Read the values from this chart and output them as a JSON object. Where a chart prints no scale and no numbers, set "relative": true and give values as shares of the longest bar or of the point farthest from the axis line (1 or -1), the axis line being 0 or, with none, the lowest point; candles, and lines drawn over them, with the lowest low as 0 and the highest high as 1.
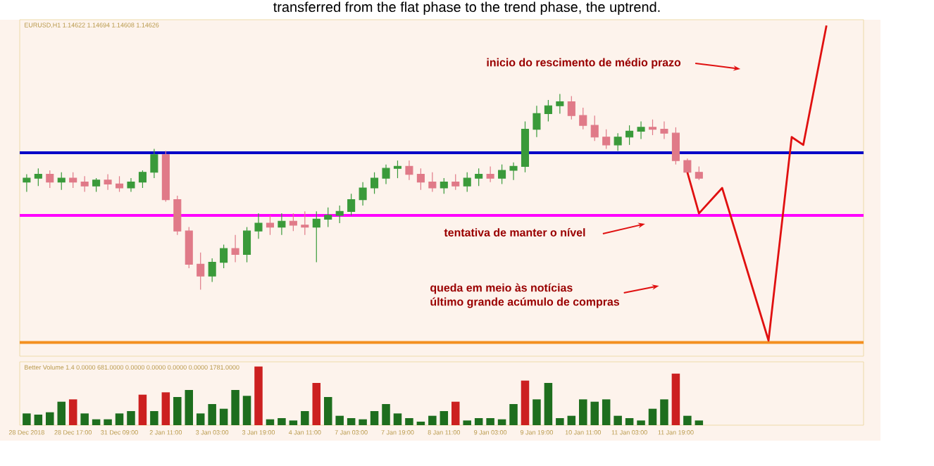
{
  "chart_data": [
    {
      "type": "candlestick",
      "title": "transferred from the flat phase to the trend phase, the uptrend.",
      "subtitle": "EURUSD,H1  1.14622 1.14694 1.14608 1.14626",
      "relative": true,
      "categories": [
        null,
        null,
        null,
        null,
        null,
        null,
        null,
        null,
        null,
        null,
        null,
        null,
        null,
        null,
        null,
        null,
        null,
        null,
        null,
        null,
        null,
        null,
        null,
        null,
        null,
        null,
        null,
        null,
        null,
        null,
        null,
        null,
        null,
        null,
        null,
        null,
        null,
        null,
        null,
        null,
        null,
        null,
        null,
        null,
        null,
        null,
        null,
        null,
        null,
        null,
        null,
        null,
        null,
        null,
        null,
        null,
        null,
        null,
        null,
        null,
        null,
        null,
        null,
        null,
        null,
        null,
        null,
        null,
        null,
        null
      ],
      "ohlc": [
        [
          0.55,
          0.59,
          0.5,
          0.57
        ],
        [
          0.57,
          0.62,
          0.53,
          0.59
        ],
        [
          0.59,
          0.61,
          0.52,
          0.55
        ],
        [
          0.55,
          0.6,
          0.51,
          0.57
        ],
        [
          0.57,
          0.6,
          0.52,
          0.55
        ],
        [
          0.55,
          0.58,
          0.5,
          0.53
        ],
        [
          0.53,
          0.57,
          0.5,
          0.56
        ],
        [
          0.56,
          0.59,
          0.51,
          0.54
        ],
        [
          0.54,
          0.58,
          0.5,
          0.52
        ],
        [
          0.52,
          0.57,
          0.5,
          0.55
        ],
        [
          0.55,
          0.61,
          0.52,
          0.6
        ],
        [
          0.6,
          0.72,
          0.57,
          0.69
        ],
        [
          0.69,
          0.71,
          0.45,
          0.46
        ],
        [
          0.46,
          0.48,
          0.28,
          0.3
        ],
        [
          0.3,
          0.32,
          0.11,
          0.13
        ],
        [
          0.13,
          0.19,
          0.0,
          0.07
        ],
        [
          0.07,
          0.16,
          0.04,
          0.14
        ],
        [
          0.14,
          0.23,
          0.11,
          0.21
        ],
        [
          0.21,
          0.28,
          0.14,
          0.18
        ],
        [
          0.18,
          0.32,
          0.14,
          0.3
        ],
        [
          0.3,
          0.39,
          0.26,
          0.34
        ],
        [
          0.34,
          0.38,
          0.28,
          0.32
        ],
        [
          0.32,
          0.39,
          0.28,
          0.35
        ],
        [
          0.35,
          0.39,
          0.3,
          0.33
        ],
        [
          0.33,
          0.4,
          0.28,
          0.32
        ],
        [
          0.32,
          0.4,
          0.14,
          0.36
        ],
        [
          0.36,
          0.42,
          0.32,
          0.38
        ],
        [
          0.38,
          0.43,
          0.34,
          0.4
        ],
        [
          0.4,
          0.49,
          0.38,
          0.46
        ],
        [
          0.46,
          0.55,
          0.43,
          0.52
        ],
        [
          0.52,
          0.6,
          0.49,
          0.57
        ],
        [
          0.57,
          0.64,
          0.54,
          0.62
        ],
        [
          0.62,
          0.66,
          0.57,
          0.63
        ],
        [
          0.63,
          0.66,
          0.56,
          0.59
        ],
        [
          0.59,
          0.62,
          0.51,
          0.55
        ],
        [
          0.55,
          0.6,
          0.5,
          0.52
        ],
        [
          0.52,
          0.57,
          0.49,
          0.55
        ],
        [
          0.55,
          0.59,
          0.51,
          0.53
        ],
        [
          0.53,
          0.6,
          0.5,
          0.57
        ],
        [
          0.57,
          0.62,
          0.53,
          0.59
        ],
        [
          0.59,
          0.63,
          0.55,
          0.57
        ],
        [
          0.57,
          0.64,
          0.54,
          0.61
        ],
        [
          0.61,
          0.65,
          0.56,
          0.63
        ],
        [
          0.63,
          0.86,
          0.6,
          0.82
        ],
        [
          0.82,
          0.94,
          0.78,
          0.9
        ],
        [
          0.9,
          0.97,
          0.86,
          0.94
        ],
        [
          0.94,
          1.0,
          0.9,
          0.96
        ],
        [
          0.96,
          0.99,
          0.87,
          0.89
        ],
        [
          0.89,
          0.93,
          0.82,
          0.84
        ],
        [
          0.84,
          0.89,
          0.76,
          0.78
        ],
        [
          0.78,
          0.82,
          0.72,
          0.74
        ],
        [
          0.74,
          0.8,
          0.71,
          0.78
        ],
        [
          0.78,
          0.84,
          0.74,
          0.81
        ],
        [
          0.81,
          0.86,
          0.77,
          0.83
        ],
        [
          0.83,
          0.87,
          0.79,
          0.82
        ],
        [
          0.82,
          0.86,
          0.77,
          0.8
        ],
        [
          0.8,
          0.83,
          0.64,
          0.66
        ],
        [
          0.66,
          0.67,
          0.59,
          0.6
        ],
        [
          0.6,
          0.63,
          0.56,
          0.57
        ],
        null,
        null,
        null,
        null,
        null,
        null,
        null,
        null,
        null,
        null,
        null
      ],
      "series": [
        {
          "type": "line",
          "color": "#e01010",
          "values": [
            null,
            null,
            null,
            null,
            null,
            null,
            null,
            null,
            null,
            null,
            null,
            null,
            null,
            null,
            null,
            null,
            null,
            null,
            null,
            null,
            null,
            null,
            null,
            null,
            null,
            null,
            null,
            null,
            null,
            null,
            null,
            null,
            null,
            null,
            null,
            null,
            null,
            null,
            null,
            null,
            null,
            null,
            null,
            null,
            null,
            null,
            null,
            null,
            null,
            null,
            null,
            null,
            null,
            null,
            null,
            null,
            null,
            0.6,
            0.39,
            null,
            0.52,
            null,
            null,
            null,
            -0.26,
            null,
            0.78,
            0.74,
            null,
            1.35
          ]
        }
      ],
      "ref_lines": [
        {
          "axis": "y",
          "value": 0.7,
          "color": "#0000c8"
        },
        {
          "axis": "y",
          "value": 0.38,
          "color": "#ff00ff"
        },
        {
          "axis": "y",
          "value": -0.27,
          "color": "#f39020"
        }
      ],
      "annotations": [
        "inicio do rescimento de médio prazo",
        "tentativa de manter o nível",
        "queda em meio às notícias",
        "último grande acúmulo de compras"
      ]
    },
    {
      "type": "bar",
      "title": "Better Volume 1.4 0.0000 681.0000 0.0000 0.0000 0.0000 0.0000 1781.0000",
      "relative": true,
      "categories": [
        "28 Dec 2018",
        null,
        null,
        null,
        "28 Dec 17:00",
        null,
        null,
        null,
        "31 Dec 09:00",
        null,
        null,
        null,
        "2 Jan 11:00",
        null,
        null,
        null,
        "3 Jan 03:00",
        null,
        null,
        null,
        "3 Jan 19:00",
        null,
        null,
        null,
        "4 Jan 11:00",
        null,
        null,
        null,
        "7 Jan 03:00",
        null,
        null,
        null,
        "7 Jan 19:00",
        null,
        null,
        null,
        "8 Jan 11:00",
        null,
        null,
        null,
        "9 Jan 03:00",
        null,
        null,
        null,
        "9 Jan 19:00",
        null,
        null,
        null,
        "10 Jan 11:00",
        null,
        null,
        null,
        "11 Jan 03:00",
        null,
        null,
        null,
        "11 Jan 19:00",
        null,
        null
      ],
      "values": [
        0.2,
        0.18,
        0.22,
        0.4,
        0.44,
        0.2,
        0.1,
        0.1,
        0.2,
        0.24,
        0.52,
        0.24,
        0.56,
        0.48,
        0.6,
        0.2,
        0.36,
        0.28,
        0.6,
        0.5,
        1.0,
        0.1,
        0.12,
        0.08,
        0.24,
        0.72,
        0.48,
        0.16,
        0.12,
        0.1,
        0.24,
        0.36,
        0.2,
        0.12,
        0.06,
        0.16,
        0.24,
        0.4,
        0.08,
        0.12,
        0.12,
        0.1,
        0.36,
        0.76,
        0.44,
        0.72,
        0.12,
        0.16,
        0.44,
        0.4,
        0.44,
        0.16,
        0.12,
        0.08,
        0.28,
        0.44,
        0.88,
        0.16,
        0.08
      ],
      "colors": [
        "#1e6e1e",
        "#1e6e1e",
        "#1e6e1e",
        "#1e6e1e",
        "#cc2020",
        "#1e6e1e",
        "#1e6e1e",
        "#1e6e1e",
        "#1e6e1e",
        "#1e6e1e",
        "#cc2020",
        "#1e6e1e",
        "#cc2020",
        "#1e6e1e",
        "#1e6e1e",
        "#1e6e1e",
        "#1e6e1e",
        "#1e6e1e",
        "#1e6e1e",
        "#1e6e1e",
        "#cc2020",
        "#1e6e1e",
        "#1e6e1e",
        "#1e6e1e",
        "#1e6e1e",
        "#cc2020",
        "#1e6e1e",
        "#1e6e1e",
        "#1e6e1e",
        "#1e6e1e",
        "#1e6e1e",
        "#1e6e1e",
        "#1e6e1e",
        "#1e6e1e",
        "#1e6e1e",
        "#1e6e1e",
        "#1e6e1e",
        "#cc2020",
        "#1e6e1e",
        "#1e6e1e",
        "#1e6e1e",
        "#1e6e1e",
        "#1e6e1e",
        "#cc2020",
        "#1e6e1e",
        "#1e6e1e",
        "#1e6e1e",
        "#1e6e1e",
        "#1e6e1e",
        "#1e6e1e",
        "#1e6e1e",
        "#1e6e1e",
        "#1e6e1e",
        "#1e6e1e",
        "#1e6e1e",
        "#1e6e1e",
        "#cc2020",
        "#1e6e1e",
        "#1e6e1e"
      ]
    }
  ]
}
